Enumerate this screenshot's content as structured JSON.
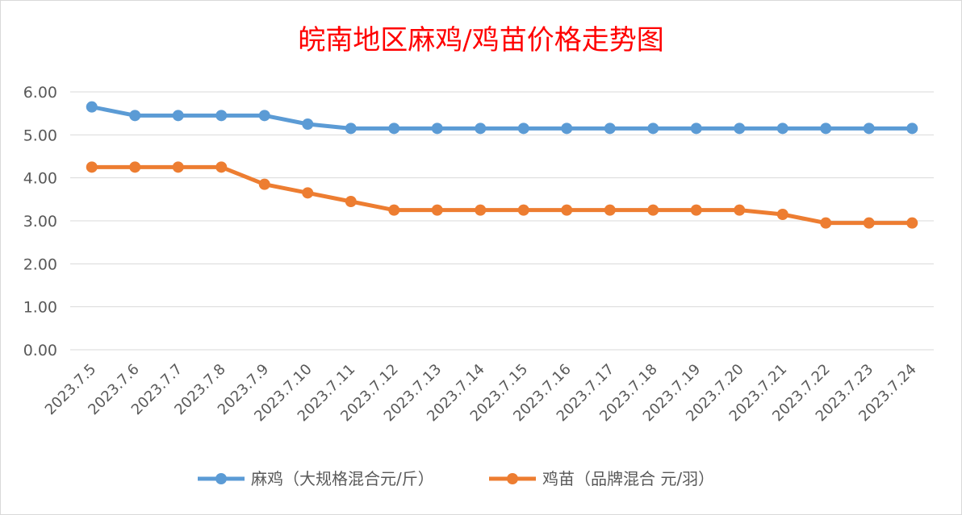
{
  "chart_data": {
    "type": "line",
    "title": "皖南地区麻鸡/鸡苗价格走势图",
    "categories": [
      "2023.7.5",
      "2023.7.6",
      "2023.7.7",
      "2023.7.8",
      "2023.7.9",
      "2023.7.10",
      "2023.7.11",
      "2023.7.12",
      "2023.7.13",
      "2023.7.14",
      "2023.7.15",
      "2023.7.16",
      "2023.7.17",
      "2023.7.18",
      "2023.7.19",
      "2023.7.20",
      "2023.7.21",
      "2023.7.22",
      "2023.7.23",
      "2023.7.24"
    ],
    "series": [
      {
        "name": "麻鸡（大规格混合元/斤）",
        "color": "#5b9bd5",
        "values": [
          5.65,
          5.45,
          5.45,
          5.45,
          5.45,
          5.25,
          5.15,
          5.15,
          5.15,
          5.15,
          5.15,
          5.15,
          5.15,
          5.15,
          5.15,
          5.15,
          5.15,
          5.15,
          5.15,
          5.15
        ]
      },
      {
        "name": "鸡苗（品牌混合 元/羽）",
        "color": "#ed7d31",
        "values": [
          4.25,
          4.25,
          4.25,
          4.25,
          3.85,
          3.65,
          3.45,
          3.25,
          3.25,
          3.25,
          3.25,
          3.25,
          3.25,
          3.25,
          3.25,
          3.25,
          3.15,
          2.95,
          2.95,
          2.95
        ]
      }
    ],
    "ylim": [
      0,
      6
    ],
    "yticks": [
      "0.00",
      "1.00",
      "2.00",
      "3.00",
      "4.00",
      "5.00",
      "6.00"
    ],
    "grid": true,
    "legend_position": "bottom"
  }
}
